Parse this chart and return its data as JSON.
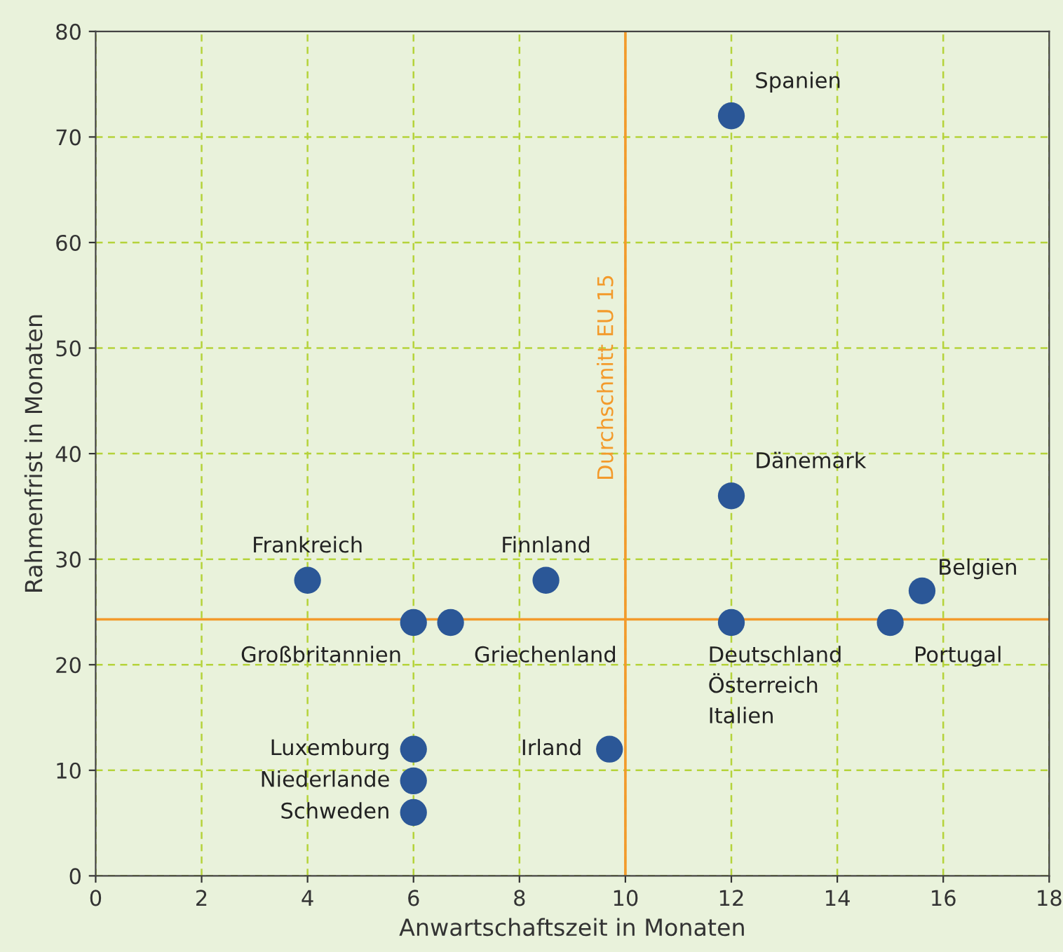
{
  "chart_data": {
    "type": "scatter",
    "xlabel": "Anwartschaftszeit in Monaten",
    "ylabel": "Rahmenfrist in Monaten",
    "x": [
      12,
      12,
      4,
      8.5,
      6,
      6.7,
      12,
      15.6,
      15,
      9.7,
      6,
      6,
      6
    ],
    "values": [
      72,
      36,
      28,
      28,
      24,
      24,
      24,
      27,
      24,
      12,
      12,
      9,
      6
    ],
    "color": "#2b5797",
    "marker": "circle",
    "xlim": [
      0,
      18
    ],
    "xticks": [
      0,
      2,
      4,
      6,
      8,
      10,
      12,
      14,
      16,
      18
    ],
    "ylim": [
      0,
      80
    ],
    "yticks": [
      0,
      10,
      20,
      30,
      40,
      50,
      60,
      70,
      80
    ],
    "grid": true,
    "ref_lines": [
      {
        "axis": "x",
        "value": 10,
        "label": "Durchschnitt EU 15",
        "color": "#f39a2b"
      },
      {
        "axis": "y",
        "value": 24.3,
        "color": "#f39a2b"
      }
    ],
    "annotations": [
      {
        "text": "Spanien",
        "x": 12,
        "y": 72
      },
      {
        "text": "Dänemark",
        "x": 12,
        "y": 36
      },
      {
        "text": "Frankreich",
        "x": 4,
        "y": 28
      },
      {
        "text": "Finnland",
        "x": 8.5,
        "y": 28
      },
      {
        "text": "Großbritannien",
        "x": 6,
        "y": 24
      },
      {
        "text": "Griechenland",
        "x": 6.7,
        "y": 24
      },
      {
        "text": "Deutschland\nÖsterreich\nItalien",
        "x": 12,
        "y": 24
      },
      {
        "text": "Belgien",
        "x": 15.6,
        "y": 27
      },
      {
        "text": "Portugal",
        "x": 15,
        "y": 24
      },
      {
        "text": "Irland",
        "x": 9.7,
        "y": 12
      },
      {
        "text": "Luxemburg",
        "x": 6,
        "y": 12
      },
      {
        "text": "Niederlande",
        "x": 6,
        "y": 9
      },
      {
        "text": "Schweden",
        "x": 6,
        "y": 6
      }
    ]
  }
}
